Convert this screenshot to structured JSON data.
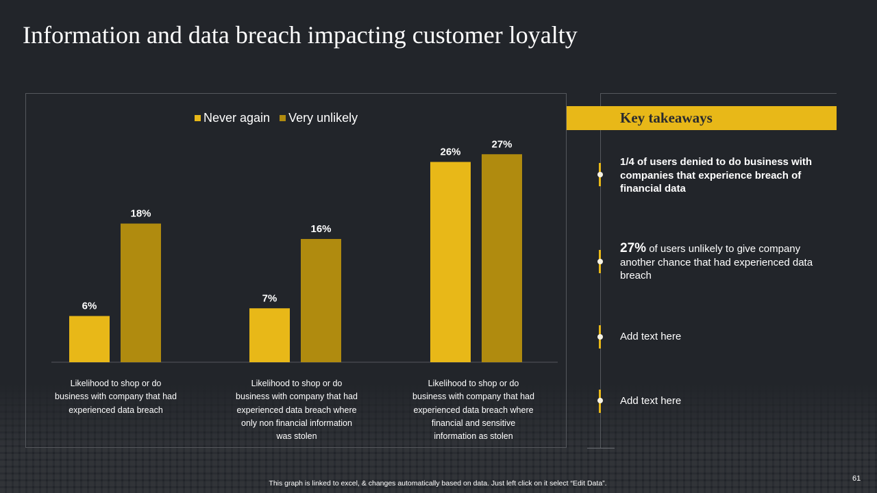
{
  "title": "Information and data breach impacting customer loyalty",
  "colors": {
    "never_again": "#e8b818",
    "very_unlikely": "#b08b0f",
    "accent": "#e8b818",
    "background": "#22252a"
  },
  "chart_data": {
    "type": "bar",
    "categories": [
      "Likelihood to shop or do business with company that had experienced data breach",
      "Likelihood to shop or do business with company that had experienced data breach where only non financial information was stolen",
      "Likelihood to shop or do business with company that had experienced data breach where financial and sensitive information as stolen"
    ],
    "series": [
      {
        "name": "Never again",
        "values": [
          6,
          7,
          26
        ],
        "labels": [
          "6%",
          "7%",
          "26%"
        ]
      },
      {
        "name": "Very unlikely",
        "values": [
          18,
          16,
          27
        ],
        "labels": [
          "18%",
          "16%",
          "27%"
        ]
      }
    ],
    "unit": "%",
    "legend": "top",
    "ylim": [
      0,
      30
    ],
    "grid": false
  },
  "key_takeaways": {
    "header": "Key takeaways",
    "items": [
      {
        "text": "1/4 of users denied to do business with companies that experience breach of financial data"
      },
      {
        "highlight": "27%",
        "text": " of users unlikely to give company another chance that had experienced data breach"
      },
      {
        "text": "Add text here"
      },
      {
        "text": "Add text here"
      }
    ]
  },
  "footer_note": "This graph is linked to excel, & changes automatically based on data. Just left click on it select “Edit Data”.",
  "page_number": "61"
}
